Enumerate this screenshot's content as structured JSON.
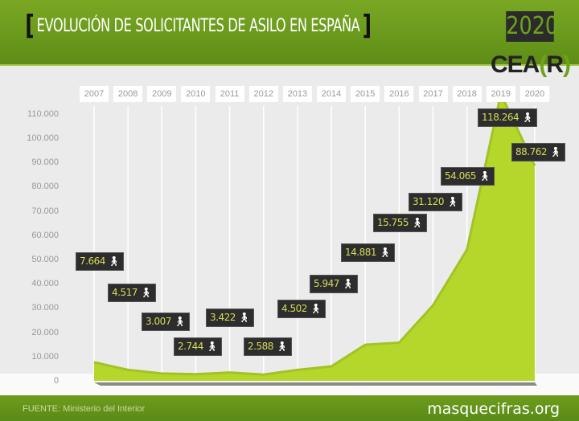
{
  "header": {
    "title": "EVOLUCIÓN DE SOLICITANTES DE ASILO EN ESPAÑA",
    "year": "2020",
    "logo_main": "CEA",
    "logo_bracket_open": "(",
    "logo_letter": "R",
    "logo_bracket_close": ")"
  },
  "footer": {
    "source": "FUENTE: Ministerio del Interior",
    "site": "masquecifras.org"
  },
  "colors": {
    "green": "#b5d62a",
    "header": "#6b9a1e",
    "label_bg": "#2d2d2d"
  },
  "chart_data": {
    "type": "area",
    "title": "EVOLUCIÓN DE SOLICITANTES DE ASILO EN ESPAÑA",
    "categories": [
      "2007",
      "2008",
      "2009",
      "2010",
      "2011",
      "2012",
      "2013",
      "2014",
      "2015",
      "2016",
      "2017",
      "2018",
      "2019",
      "2020"
    ],
    "values": [
      7664,
      4517,
      3007,
      2744,
      3422,
      2588,
      4502,
      5947,
      14881,
      15755,
      31120,
      54065,
      118264,
      88762
    ],
    "value_labels": [
      "7.664",
      "4.517",
      "3.007",
      "2.744",
      "3.422",
      "2.588",
      "4.502",
      "5.947",
      "14.881",
      "15.755",
      "31.120",
      "54.065",
      "118.264",
      "88.762"
    ],
    "yticks": [
      "0",
      "10.000",
      "20.000",
      "30.000",
      "40.000",
      "50.000",
      "60.000",
      "70.000",
      "80.000",
      "90.000",
      "100.000",
      "110.000"
    ],
    "ylim": [
      0,
      110000
    ],
    "grid": true,
    "icon": "person-walking-icon"
  }
}
